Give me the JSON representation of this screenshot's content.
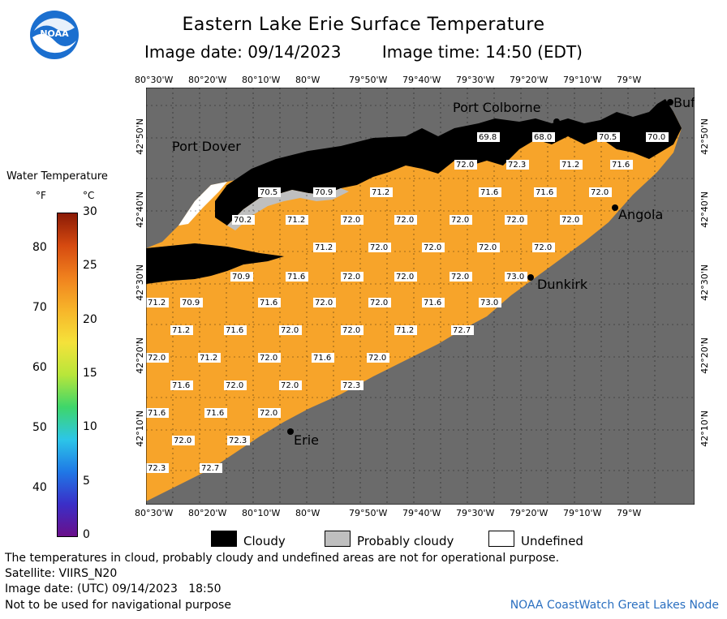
{
  "title": "Eastern Lake Erie Surface Temperature",
  "image_date_label": "Image date: 09/14/2023",
  "image_time_label": "Image time: 14:50 (EDT)",
  "logo_text": "NOAA",
  "lon_ticks": [
    "80°30'W",
    "80°20'W",
    "80°10'W",
    "80°W",
    "79°50'W",
    "79°40'W",
    "79°30'W",
    "79°20'W",
    "79°10'W",
    "79°W"
  ],
  "lat_ticks": [
    "42°50'N",
    "42°40'N",
    "42°30'N",
    "42°20'N",
    "42°10'N"
  ],
  "colorbar": {
    "title": "Water Temperature",
    "unit_f": "°F",
    "unit_c": "°C",
    "f_ticks": [
      "80",
      "70",
      "60",
      "50",
      "40"
    ],
    "c_ticks": [
      "30",
      "25",
      "20",
      "15",
      "10",
      "5",
      "0"
    ],
    "colors": [
      "#6a0f8a",
      "#3a2fc8",
      "#1f78e6",
      "#2cc6e8",
      "#3ed66a",
      "#b8e63a",
      "#f5e23a",
      "#f7b52a",
      "#f0821e",
      "#d64a10",
      "#8a1a06"
    ]
  },
  "places": [
    "Port Colborne",
    "Port Dover",
    "Buf",
    "Angola",
    "Dunkirk",
    "Erie"
  ],
  "temperature_readings": [
    [
      "69.8",
      "68.0",
      "70.5",
      "70.0"
    ],
    [
      "72.0",
      "72.3",
      "71.2",
      "71.6"
    ],
    [
      "70.5",
      "70.9",
      "71.2",
      "71.6",
      "71.6",
      "72.0"
    ],
    [
      "70.2",
      "71.2",
      "72.0",
      "72.0",
      "72.0",
      "72.0",
      "72.0"
    ],
    [
      "71.2",
      "72.0",
      "72.0",
      "72.0",
      "72.0"
    ],
    [
      "70.9",
      "71.6",
      "72.0",
      "72.0",
      "72.0",
      "73.0"
    ],
    [
      "71.2",
      "70.9",
      "71.6",
      "72.0",
      "72.0",
      "71.6",
      "73.0"
    ],
    [
      "71.2",
      "71.6",
      "72.0",
      "72.0",
      "71.2",
      "72.7"
    ],
    [
      "72.0",
      "71.2",
      "72.0",
      "71.6",
      "72.0"
    ],
    [
      "71.6",
      "72.0",
      "72.0",
      "72.3"
    ],
    [
      "71.6",
      "71.6",
      "72.0"
    ],
    [
      "72.0",
      "72.3"
    ],
    [
      "72.3",
      "72.7"
    ]
  ],
  "legend": {
    "cloudy": "Cloudy",
    "probably_cloudy": "Probably cloudy",
    "undefined": "Undefined"
  },
  "footer": {
    "note": "The temperatures in cloud, probably cloudy and undefined areas are not for operational purpose.",
    "satellite": "Satellite: VIIRS_N20",
    "utc_date": "Image date: (UTC) 09/14/2023   18:50",
    "nav": "Not to be used for navigational purpose",
    "credit": "NOAA CoastWatch Great Lakes Node"
  },
  "colors": {
    "lake": "#f7a42a",
    "land": "#6b6b6b",
    "cloud": "#000000",
    "prob_cloud": "#bfbfbf",
    "undefined": "#ffffff"
  }
}
